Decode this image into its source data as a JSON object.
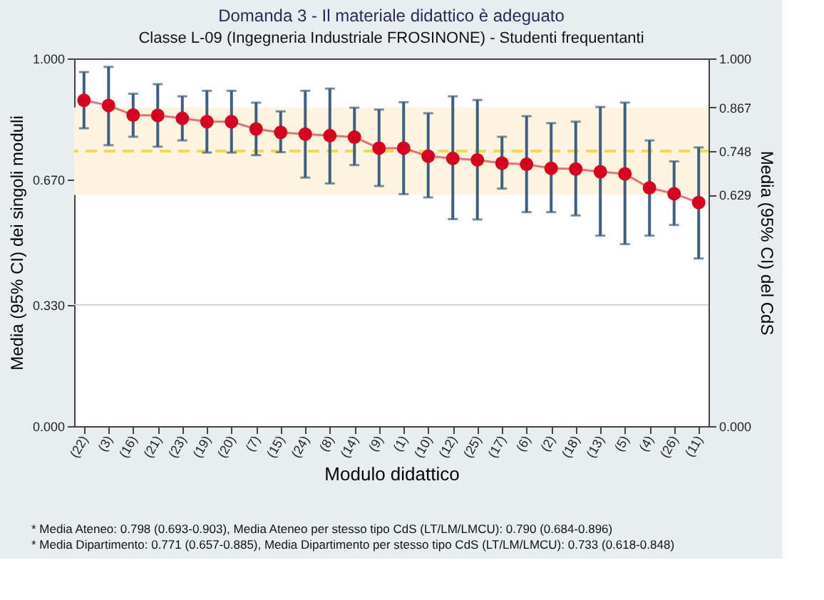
{
  "chart_data": {
    "type": "line",
    "title": "Domanda 3 - Il materiale didattico è adeguato",
    "subtitle": "Classe L-09 (Ingegneria Industriale FROSINONE) - Studenti frequentanti",
    "xlabel": "Modulo didattico",
    "ylabel": "Media (95% CI) dei singoli moduli",
    "y2label": "Media (95% CI) del CdS",
    "categories": [
      "(22)",
      "(3)",
      "(16)",
      "(21)",
      "(23)",
      "(19)",
      "(20)",
      "(7)",
      "(15)",
      "(24)",
      "(8)",
      "(14)",
      "(9)",
      "(1)",
      "(10)",
      "(12)",
      "(25)",
      "(17)",
      "(6)",
      "(2)",
      "(18)",
      "(13)",
      "(5)",
      "(4)",
      "(26)",
      "(11)"
    ],
    "series": [
      {
        "color": "#d7001f",
        "values": [
          0.886,
          0.872,
          0.846,
          0.845,
          0.837,
          0.828,
          0.828,
          0.808,
          0.799,
          0.794,
          0.79,
          0.786,
          0.756,
          0.756,
          0.734,
          0.728,
          0.724,
          0.715,
          0.712,
          0.701,
          0.699,
          0.692,
          0.686,
          0.648,
          0.632,
          0.608
        ],
        "errors": [
          [
            0.81,
            0.963
          ],
          [
            0.764,
            0.977
          ],
          [
            0.787,
            0.904
          ],
          [
            0.76,
            0.93
          ],
          [
            0.777,
            0.897
          ],
          [
            0.744,
            0.912
          ],
          [
            0.744,
            0.912
          ],
          [
            0.737,
            0.88
          ],
          [
            0.745,
            0.856
          ],
          [
            0.676,
            0.912
          ],
          [
            0.66,
            0.918
          ],
          [
            0.71,
            0.866
          ],
          [
            0.653,
            0.861
          ],
          [
            0.631,
            0.881
          ],
          [
            0.622,
            0.851
          ],
          [
            0.563,
            0.897
          ],
          [
            0.562,
            0.887
          ],
          [
            0.646,
            0.787
          ],
          [
            0.582,
            0.843
          ],
          [
            0.582,
            0.824
          ],
          [
            0.573,
            0.828
          ],
          [
            0.518,
            0.868
          ],
          [
            0.495,
            0.88
          ],
          [
            0.518,
            0.777
          ],
          [
            0.547,
            0.72
          ],
          [
            0.456,
            0.758
          ]
        ]
      }
    ],
    "ylim": [
      0,
      1
    ],
    "yticks": [
      {
        "value": 0,
        "label": "0.000"
      },
      {
        "value": 0.33,
        "label": "0.330"
      },
      {
        "value": 0.67,
        "label": "0.670"
      },
      {
        "value": 1,
        "label": "1.000"
      }
    ],
    "y2lim": [
      0,
      1
    ],
    "y2ticks": [
      {
        "value": 0,
        "label": "0.000"
      },
      {
        "value": 0.629,
        "label": "0.629"
      },
      {
        "value": 0.748,
        "label": "0.748"
      },
      {
        "value": 0.867,
        "label": "0.867"
      },
      {
        "value": 1,
        "label": "1.000"
      }
    ],
    "ref_lines": [
      {
        "axis": "y2",
        "value": 0.748,
        "color": "#f2d94e",
        "line_style": "dashed"
      },
      {
        "axis": "y",
        "value": 0.33,
        "color": "#d0d0d0",
        "line_style": "solid"
      }
    ],
    "bands": [
      {
        "axis": "y2",
        "from": 0.629,
        "to": 0.867,
        "color": "#fcf4de"
      }
    ],
    "marker": "circle",
    "line_style": "solid",
    "annotations": [
      "* Media Ateneo: 0.798 (0.693-0.903),  Media Ateneo per stesso tipo CdS (LT/LM/LMCU): 0.790 (0.684-0.896)",
      "* Media Dipartimento: 0.771 (0.657-0.885), Media Dipartimento per stesso tipo CdS (LT/LM/LMCU): 0.733 (0.618-0.848)"
    ]
  }
}
